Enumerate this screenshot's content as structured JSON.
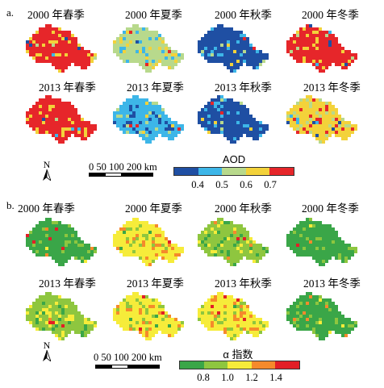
{
  "panels": [
    {
      "id": "a",
      "label": "a.",
      "titles": [
        "2000 年春季",
        "2000 年夏季",
        "2000 年秋季",
        "2000 年冬季",
        "2013 年春季",
        "2013 年夏季",
        "2013 年秋季",
        "2013 年冬季"
      ],
      "legend": {
        "title": "AOD",
        "colors": [
          "#1f4fa3",
          "#3db6e8",
          "#b8d98c",
          "#f3d23a",
          "#e6262a"
        ],
        "ticks": [
          "0.4",
          "0.5",
          "0.6",
          "0.7"
        ]
      },
      "dominant_class": [
        4,
        2,
        0,
        4,
        4,
        1,
        0,
        3
      ]
    },
    {
      "id": "b",
      "label": "b.",
      "titles": [
        "2000 年春季",
        "2000 年夏季",
        "2000 年秋季",
        "2000 年冬季",
        "2013 年春季",
        "2013 年夏季",
        "2013 年秋季",
        "2013 年冬季"
      ],
      "legend": {
        "title": "α 指数",
        "colors": [
          "#3aa648",
          "#8ec63f",
          "#f6ec3a",
          "#f58a2b",
          "#e21f26"
        ],
        "ticks": [
          "0.8",
          "1.0",
          "1.2",
          "1.4"
        ]
      },
      "dominant_class": [
        0,
        2,
        1,
        0,
        1,
        2,
        2,
        0
      ]
    }
  ],
  "north_label": "N",
  "scale_label": "0 50 100 200 km"
}
